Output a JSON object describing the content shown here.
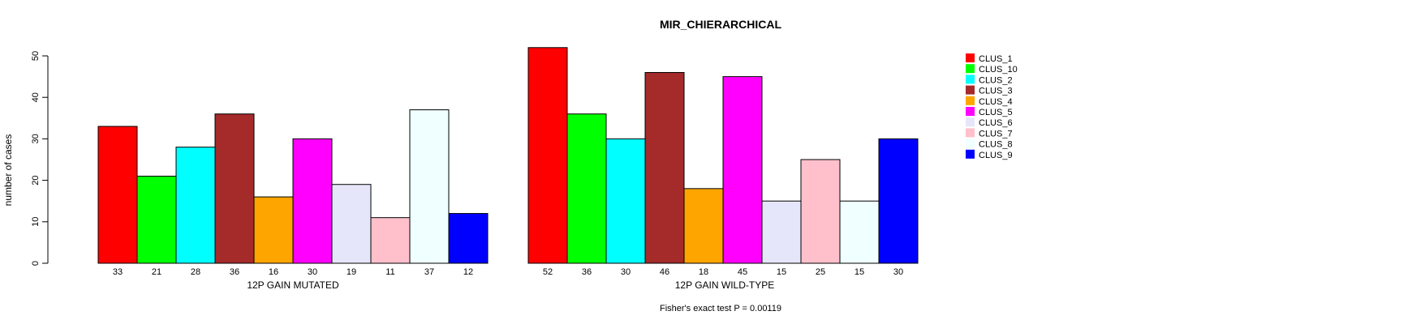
{
  "chart_data": {
    "type": "bar",
    "title": "MIR_CHIERARCHICAL",
    "ylabel": "number of cases",
    "ylim": [
      0,
      50
    ],
    "yticks": [
      0,
      10,
      20,
      30,
      40,
      50
    ],
    "footnote": "Fisher's exact test P = 0.00119",
    "legend_position": "right",
    "legend": [
      {
        "name": "CLUS_1",
        "color": "#FF0000"
      },
      {
        "name": "CLUS_10",
        "color": "#00FF00"
      },
      {
        "name": "CLUS_2",
        "color": "#00FFFF"
      },
      {
        "name": "CLUS_3",
        "color": "#A52A2A"
      },
      {
        "name": "CLUS_4",
        "color": "#FFA500"
      },
      {
        "name": "CLUS_5",
        "color": "#FF00FF"
      },
      {
        "name": "CLUS_6",
        "color": "#E6E6FA"
      },
      {
        "name": "CLUS_7",
        "color": "#FFC0CB"
      },
      {
        "name": "CLUS_8",
        "color": "#F0FFFF"
      },
      {
        "name": "CLUS_9",
        "color": "#0000FF"
      }
    ],
    "groups": [
      {
        "xlabel": "12P GAIN MUTATED",
        "values": [
          33,
          21,
          28,
          36,
          16,
          30,
          19,
          11,
          37,
          12
        ]
      },
      {
        "xlabel": "12P GAIN WILD-TYPE",
        "values": [
          52,
          36,
          30,
          46,
          18,
          45,
          15,
          25,
          15,
          30
        ]
      }
    ]
  }
}
